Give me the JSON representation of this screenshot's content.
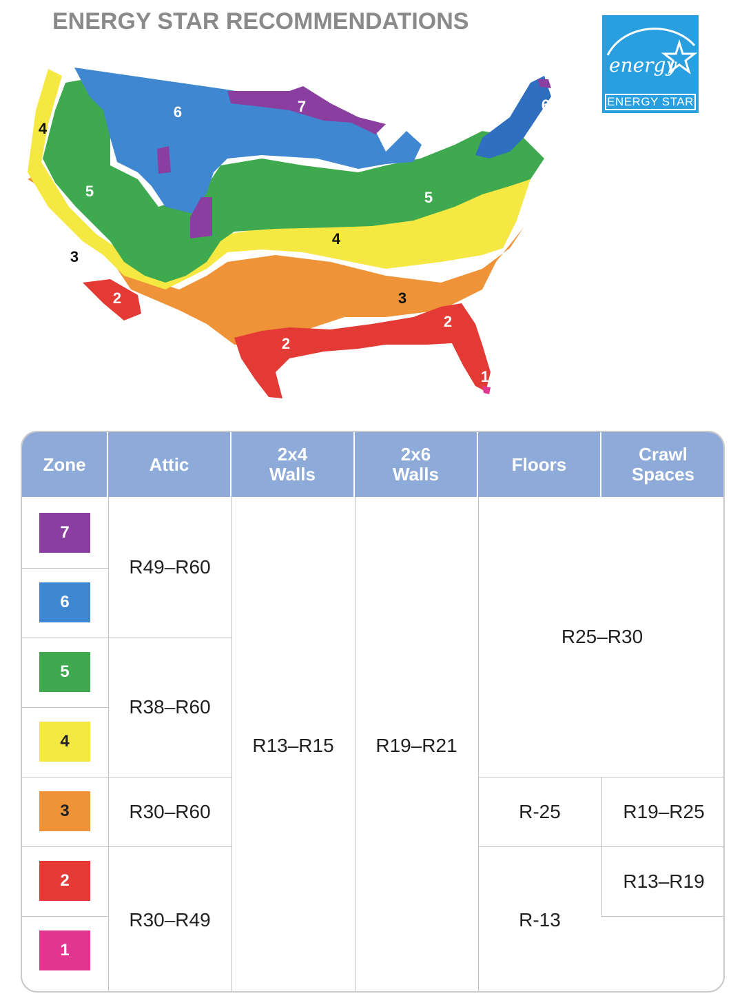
{
  "title": "ENERGY STAR RECOMMENDATIONS",
  "logo": {
    "script": "energy",
    "label": "ENERGY STAR"
  },
  "map": {
    "zone_labels": [
      "7",
      "6",
      "6",
      "4",
      "5",
      "5",
      "4",
      "3",
      "3",
      "2",
      "2",
      "2",
      "1"
    ]
  },
  "table": {
    "headers": {
      "zone": "Zone",
      "attic": "Attic",
      "walls_2x4": "2x4\nWalls",
      "walls_2x6": "2x6\nWalls",
      "floors": "Floors",
      "crawl": "Crawl\nSpaces"
    },
    "zones": [
      {
        "zone": "7",
        "color": "#8a3fa0"
      },
      {
        "zone": "6",
        "color": "#3f87d0"
      },
      {
        "zone": "5",
        "color": "#3fa94f"
      },
      {
        "zone": "4",
        "color": "#f5e843"
      },
      {
        "zone": "3",
        "color": "#ef9338"
      },
      {
        "zone": "2",
        "color": "#e33a35"
      },
      {
        "zone": "1",
        "color": "#e0368f"
      }
    ],
    "attic": [
      "R49–R60",
      "R38–R60",
      "R30–R60",
      "R30–R49"
    ],
    "walls_2x4": "R13–R15",
    "walls_2x6": "R19–R21",
    "floors": [
      "R25–R30",
      "R-25",
      "R-13"
    ],
    "crawl": [
      "R19–R25",
      "R13–R19"
    ]
  }
}
